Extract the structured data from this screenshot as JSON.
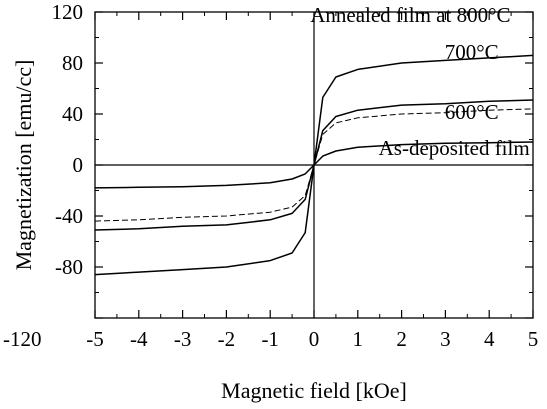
{
  "chart_data": {
    "type": "line",
    "title": "",
    "xlabel": "Magnetic field [kOe]",
    "ylabel": "Magnetization [emu/cc]",
    "xlim": [
      -5,
      5
    ],
    "ylim": [
      -120,
      120
    ],
    "xticks": [
      -5,
      -4,
      -3,
      -2,
      -1,
      0,
      1,
      2,
      3,
      4,
      5
    ],
    "yticks": [
      -120,
      -80,
      -40,
      0,
      40,
      80,
      120
    ],
    "grid": false,
    "annotations": [
      {
        "text": "Annealed film at 800°C",
        "x": 2.2,
        "y": 112
      },
      {
        "text": "700°C",
        "x": 3.6,
        "y": 83
      },
      {
        "text": "600°C",
        "x": 3.6,
        "y": 36
      },
      {
        "text": "As-deposited film",
        "x": 3.2,
        "y": 8
      }
    ],
    "series": [
      {
        "name": "Annealed film at 800°C",
        "style": "solid",
        "x": [
          -5,
          -4,
          -3,
          -2,
          -1,
          -0.5,
          -0.2,
          0,
          0.2,
          0.5,
          1,
          2,
          3,
          4,
          5
        ],
        "y": [
          -86,
          -84,
          -82,
          -80,
          -75,
          -69,
          -53,
          0,
          53,
          69,
          75,
          80,
          82,
          84,
          86
        ]
      },
      {
        "name": "700°C",
        "style": "solid",
        "x": [
          -5,
          -4,
          -3,
          -2,
          -1,
          -0.5,
          -0.2,
          0,
          0.2,
          0.5,
          1,
          2,
          3,
          4,
          5
        ],
        "y": [
          -51,
          -50,
          -48,
          -47,
          -43,
          -38,
          -27,
          0,
          27,
          38,
          43,
          47,
          48,
          50,
          51
        ]
      },
      {
        "name": "600°C",
        "style": "dashed",
        "x": [
          -5,
          -4,
          -3,
          -2,
          -1,
          -0.5,
          -0.2,
          0,
          0.2,
          0.5,
          1,
          2,
          3,
          4,
          5
        ],
        "y": [
          -44,
          -43,
          -41,
          -40,
          -37,
          -33,
          -24,
          0,
          24,
          33,
          37,
          40,
          41,
          43,
          44
        ]
      },
      {
        "name": "As-deposited film",
        "style": "solid",
        "x": [
          -5,
          -4,
          -3,
          -2,
          -1,
          -0.5,
          -0.2,
          0,
          0.2,
          0.5,
          1,
          2,
          3,
          4,
          5
        ],
        "y": [
          -18,
          -17.5,
          -17,
          -16,
          -14,
          -11,
          -7,
          0,
          7,
          11,
          14,
          16,
          17,
          17.5,
          18
        ]
      }
    ]
  }
}
